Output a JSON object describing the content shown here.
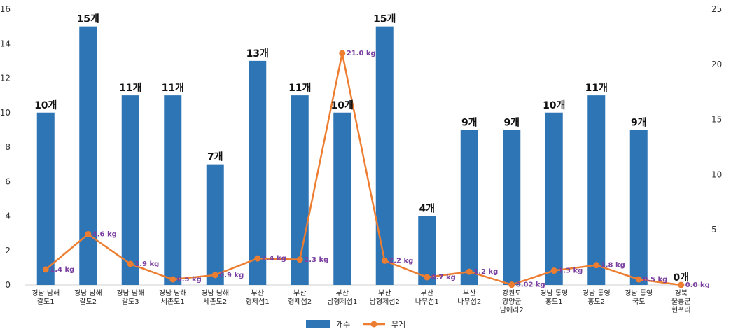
{
  "chart_data": {
    "type": "bar",
    "categories": [
      [
        "경남 남해",
        "갈도1"
      ],
      [
        "경남 남해",
        "갈도2"
      ],
      [
        "경남 남해",
        "갈도3"
      ],
      [
        "경남 남해",
        "세존도1"
      ],
      [
        "경남 남해",
        "세존도2"
      ],
      [
        "부산",
        "형제섬1"
      ],
      [
        "부산",
        "형제섬2"
      ],
      [
        "부산",
        "남형제섬1"
      ],
      [
        "부산",
        "남형제섬2"
      ],
      [
        "부산",
        "나무섬1"
      ],
      [
        "부산",
        "나무섬2"
      ],
      [
        "강원도",
        "양양군",
        "남애리2"
      ],
      [
        "경남 통영",
        "홍도1"
      ],
      [
        "경남 통영",
        "홍도2"
      ],
      [
        "경남 통영",
        "국도"
      ],
      [
        "경북",
        "울릉군",
        "현포리"
      ]
    ],
    "series": [
      {
        "name": "개수",
        "type": "bar",
        "axis": "left",
        "color": "#2e75b6",
        "values": [
          10,
          15,
          11,
          11,
          7,
          13,
          11,
          10,
          15,
          4,
          9,
          9,
          10,
          11,
          9,
          0
        ],
        "labels": [
          "10개",
          "15개",
          "11개",
          "11개",
          "7개",
          "13개",
          "11개",
          "10개",
          "15개",
          "4개",
          "9개",
          "9개",
          "10개",
          "11개",
          "9개",
          "0개"
        ]
      },
      {
        "name": "무게",
        "type": "line",
        "axis": "right",
        "color": "#ed7d31",
        "values": [
          1.4,
          4.6,
          1.9,
          0.5,
          0.9,
          2.4,
          2.3,
          21.0,
          2.2,
          0.7,
          1.2,
          0.02,
          1.3,
          1.8,
          0.5,
          0.0
        ],
        "labels": [
          "1.4 kg",
          "4.6 kg",
          "1.9 kg",
          "0.5 kg",
          "0.9 kg",
          "2.4 kg",
          "2.3 kg",
          "21.0 kg",
          "2.2 kg",
          "0.7 kg",
          "1.2 kg",
          "0.02 kg",
          "1.3 kg",
          "1.8 kg",
          "0.5 kg",
          "0.0 kg"
        ]
      }
    ],
    "y_left": {
      "min": 0,
      "max": 16,
      "ticks": [
        0,
        2,
        4,
        6,
        8,
        10,
        12,
        14,
        16
      ]
    },
    "y_right": {
      "min": 0,
      "max": 25,
      "ticks": [
        5,
        10,
        15,
        20,
        25
      ]
    },
    "grid": false,
    "legend_position": "bottom-center",
    "title": "",
    "xlabel": "",
    "ylabel": ""
  }
}
